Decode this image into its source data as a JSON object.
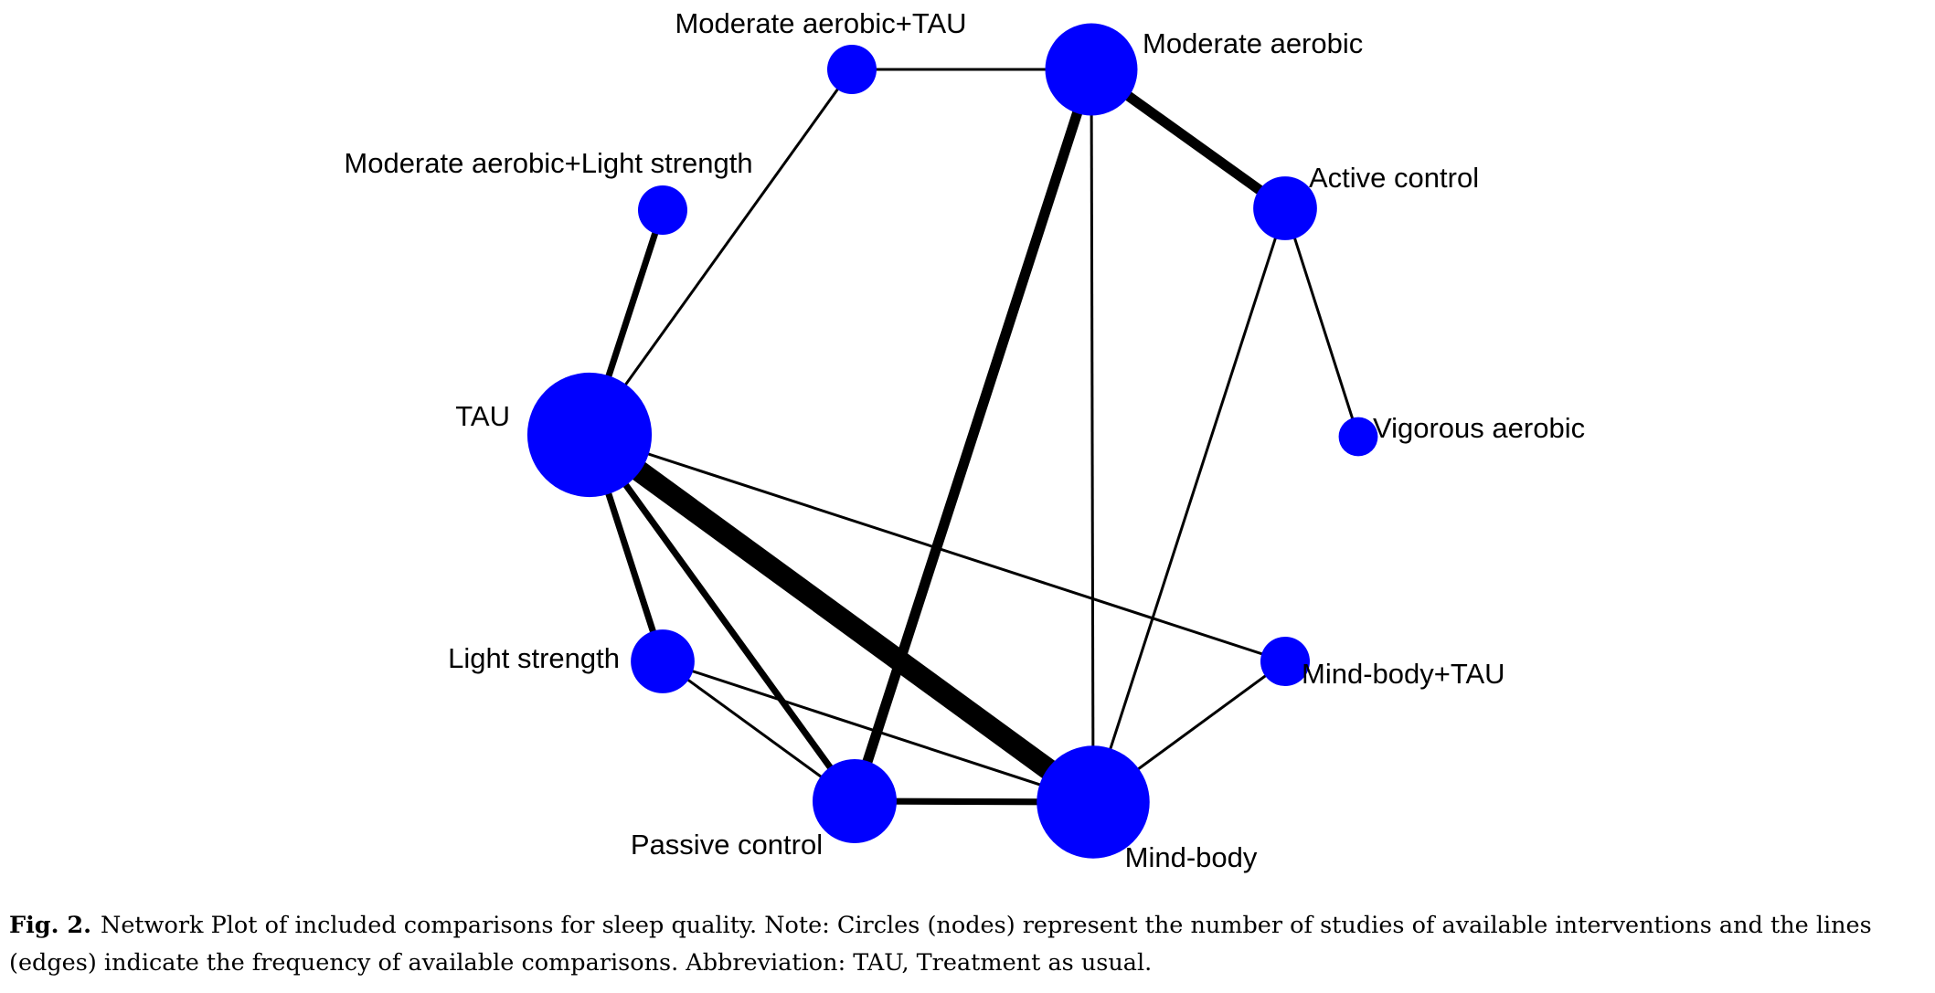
{
  "colors": {
    "node": "#0000ff",
    "edge": "#000000",
    "background": "#ffffff"
  },
  "network": {
    "nodes": [
      {
        "id": "moderate-aerobic-tau",
        "label": "Moderate aerobic+TAU",
        "size": 1
      },
      {
        "id": "moderate-aerobic",
        "label": "Moderate aerobic",
        "size": 5
      },
      {
        "id": "moderate-aerobic-light-strength",
        "label": "Moderate aerobic+Light strength",
        "size": 1
      },
      {
        "id": "active-control",
        "label": "Active control",
        "size": 2
      },
      {
        "id": "tau",
        "label": "TAU",
        "size": 10
      },
      {
        "id": "vigorous-aerobic",
        "label": "Vigorous aerobic",
        "size": 0.5
      },
      {
        "id": "light-strength",
        "label": "Light strength",
        "size": 2
      },
      {
        "id": "mind-body-tau",
        "label": "Mind-body+TAU",
        "size": 1
      },
      {
        "id": "passive-control",
        "label": "Passive control",
        "size": 4
      },
      {
        "id": "mind-body",
        "label": "Mind-body",
        "size": 8
      }
    ],
    "edges": [
      {
        "from": "moderate-aerobic-tau",
        "to": "moderate-aerobic",
        "weight": 1
      },
      {
        "from": "moderate-aerobic-tau",
        "to": "tau",
        "weight": 1
      },
      {
        "from": "moderate-aerobic",
        "to": "active-control",
        "weight": 3
      },
      {
        "from": "moderate-aerobic",
        "to": "passive-control",
        "weight": 3
      },
      {
        "from": "moderate-aerobic",
        "to": "mind-body",
        "weight": 1
      },
      {
        "from": "active-control",
        "to": "vigorous-aerobic",
        "weight": 1
      },
      {
        "from": "active-control",
        "to": "mind-body",
        "weight": 1
      },
      {
        "from": "moderate-aerobic-light-strength",
        "to": "tau",
        "weight": 2
      },
      {
        "from": "tau",
        "to": "mind-body",
        "weight": 6
      },
      {
        "from": "tau",
        "to": "mind-body-tau",
        "weight": 1
      },
      {
        "from": "tau",
        "to": "light-strength",
        "weight": 2
      },
      {
        "from": "tau",
        "to": "passive-control",
        "weight": 2
      },
      {
        "from": "light-strength",
        "to": "mind-body",
        "weight": 1
      },
      {
        "from": "light-strength",
        "to": "passive-control",
        "weight": 1
      },
      {
        "from": "mind-body-tau",
        "to": "mind-body",
        "weight": 1
      },
      {
        "from": "passive-control",
        "to": "mind-body",
        "weight": 2
      }
    ]
  },
  "caption": {
    "figure_number": "Fig. 2.",
    "text": "Network Plot of included comparisons for sleep quality. Note: Circles (nodes) represent the number of studies of available interventions and the lines (edges) indicate the frequency of available comparisons. Abbreviation: TAU, Treatment as usual."
  }
}
